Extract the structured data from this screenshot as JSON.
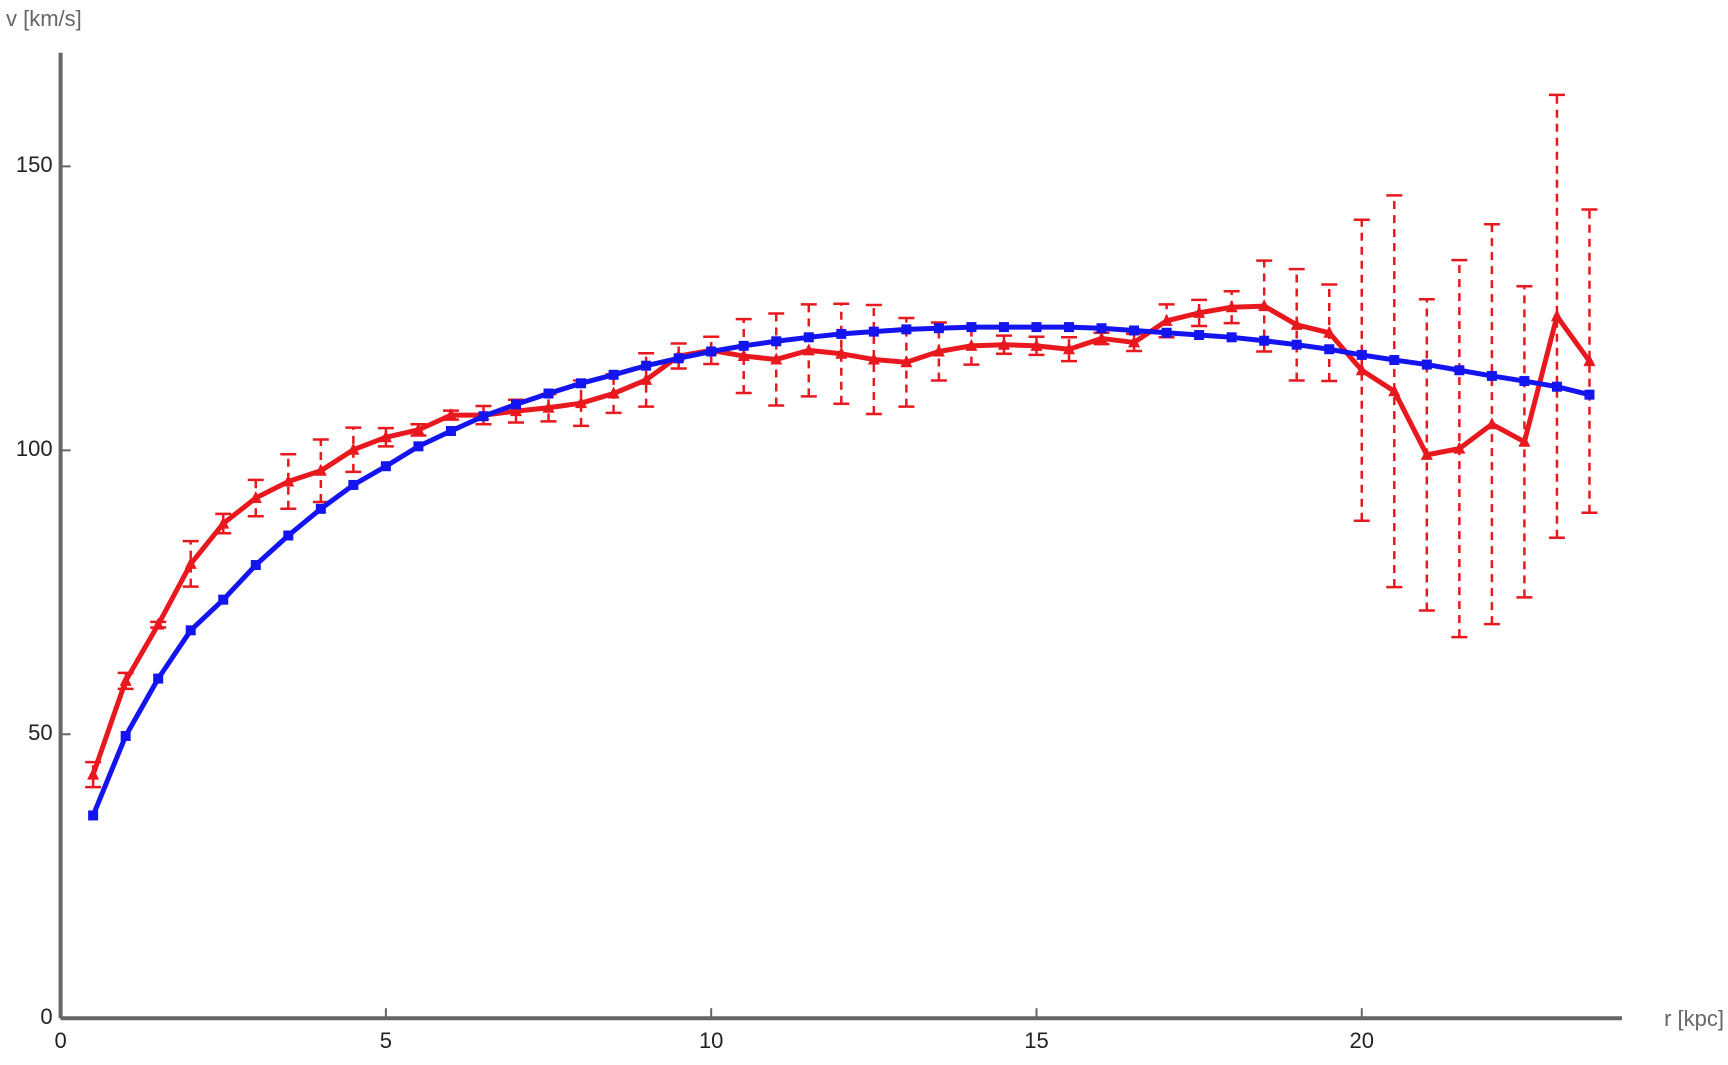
{
  "chart_data": {
    "type": "line",
    "xlabel": "r [kpc]",
    "ylabel": "v [km/s]",
    "x": [
      0.5,
      1.0,
      1.5,
      2.0,
      2.5,
      3.0,
      3.5,
      4.0,
      4.5,
      5.0,
      5.5,
      6.0,
      6.5,
      7.0,
      7.5,
      8.0,
      8.5,
      9.0,
      9.5,
      10.0,
      10.5,
      11.0,
      11.5,
      12.0,
      12.5,
      13.0,
      13.5,
      14.0,
      14.5,
      15.0,
      15.5,
      16.0,
      16.5,
      17.0,
      17.5,
      18.0,
      18.5,
      19.0,
      19.5,
      20.0,
      20.5,
      21.0,
      21.5,
      22.0,
      22.5,
      23.0,
      23.5
    ],
    "series": [
      {
        "color": "#e8181e",
        "marker": "triangle",
        "values": [
          42.9,
          59.4,
          69.3,
          80.0,
          87.1,
          91.6,
          94.5,
          96.4,
          100.1,
          102.3,
          103.6,
          106.2,
          106.2,
          106.9,
          107.5,
          108.3,
          110.0,
          112.4,
          116.6,
          117.6,
          116.6,
          116.0,
          117.6,
          117.0,
          116.0,
          115.5,
          117.4,
          118.4,
          118.6,
          118.4,
          117.8,
          119.7,
          119.0,
          122.8,
          124.2,
          125.2,
          125.4,
          122.1,
          120.7,
          114.1,
          110.4,
          99.2,
          100.3,
          104.6,
          101.5,
          123.6,
          115.7
        ],
        "errors": [
          2.2,
          1.4,
          0.5,
          4.0,
          1.7,
          3.2,
          4.8,
          5.5,
          3.9,
          1.6,
          1.0,
          0.8,
          1.6,
          2.0,
          2.4,
          4.0,
          3.4,
          4.7,
          2.2,
          2.4,
          6.5,
          8.1,
          8.1,
          8.8,
          9.6,
          7.8,
          5.1,
          3.3,
          1.6,
          1.6,
          2.1,
          1.0,
          1.5,
          2.9,
          2.3,
          2.8,
          8.0,
          9.8,
          8.5,
          26.5,
          34.5,
          27.4,
          33.2,
          35.2,
          27.4,
          39.0,
          26.7
        ]
      },
      {
        "color": "#1414f0",
        "marker": "square",
        "values": [
          35.7,
          49.7,
          59.8,
          68.3,
          73.7,
          79.8,
          85.0,
          89.7,
          93.9,
          97.2,
          100.7,
          103.4,
          106.0,
          108.1,
          110.0,
          111.8,
          113.3,
          114.9,
          116.2,
          117.4,
          118.4,
          119.2,
          119.9,
          120.5,
          120.9,
          121.3,
          121.5,
          121.7,
          121.7,
          121.7,
          121.7,
          121.5,
          121.1,
          120.7,
          120.3,
          119.9,
          119.3,
          118.6,
          117.8,
          116.8,
          115.9,
          115.1,
          114.1,
          113.1,
          112.2,
          111.2,
          109.8
        ]
      }
    ],
    "xlim": [
      0,
      24
    ],
    "ylim": [
      0,
      170
    ],
    "xticks": [
      0,
      5,
      10,
      15,
      20
    ],
    "yticks": [
      0,
      50,
      100,
      150
    ]
  }
}
